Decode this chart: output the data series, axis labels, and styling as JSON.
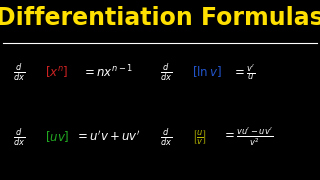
{
  "background_color": "#000000",
  "title": "Differentiation Formulas",
  "title_color": "#FFE000",
  "title_fontsize": 17,
  "separator_color": "#FFFFFF",
  "formula_color": "#FFFFFF",
  "box_red": "#CC2222",
  "box_blue": "#2255CC",
  "box_green": "#22AA22",
  "box_yellow": "#BBBB00"
}
